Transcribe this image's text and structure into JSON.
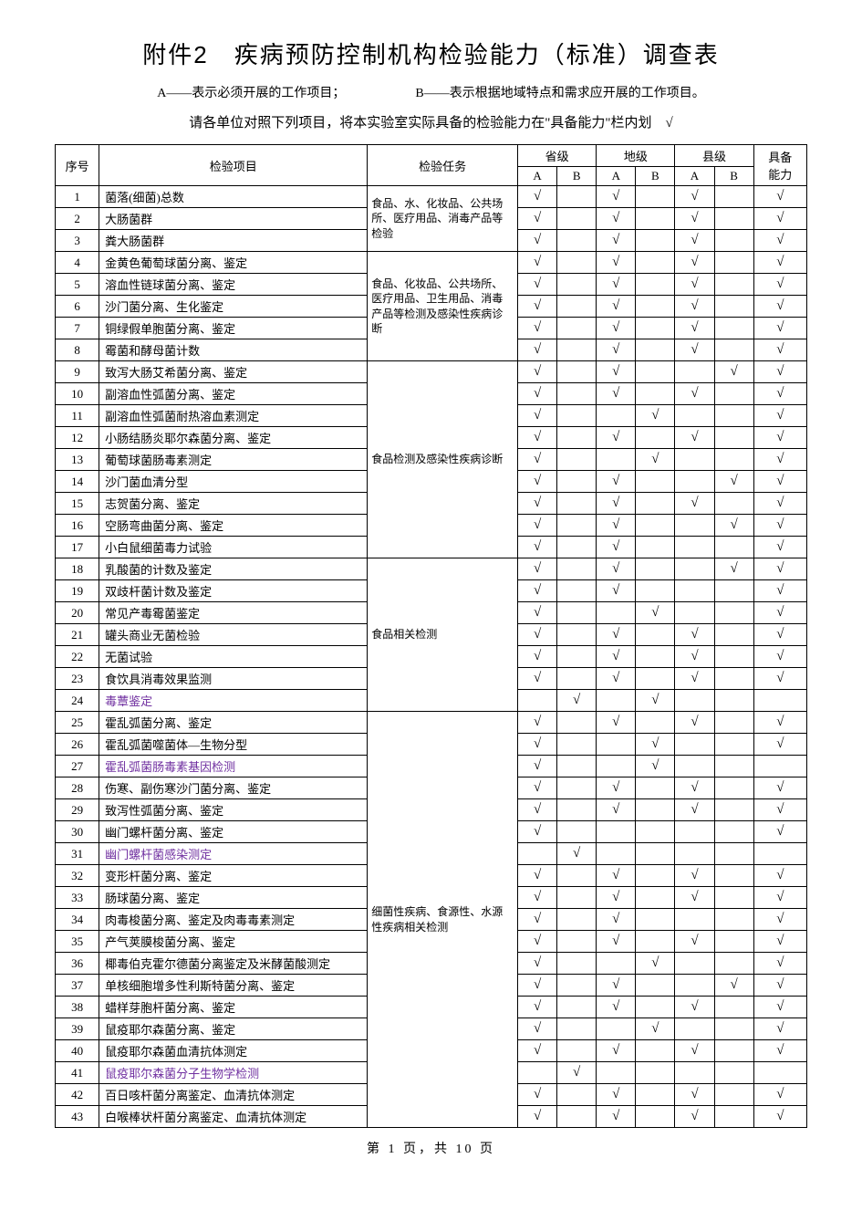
{
  "title": "附件2　疾病预防控制机构检验能力（标准）调查表",
  "legendA": "A——表示必须开展的工作项目；",
  "legendB": "B——表示根据地域特点和需求应开展的工作项目。",
  "instruction": "请各单位对照下列项目，将本实验室实际具备的检验能力在\"具备能力\"栏内划　√",
  "checkmark": "√",
  "headers": {
    "seq": "序号",
    "item": "检验项目",
    "task": "检验任务",
    "prov": "省级",
    "city": "地级",
    "county": "县级",
    "A": "A",
    "B": "B",
    "capability": "具备\n能力"
  },
  "taskGroups": [
    {
      "start": 1,
      "span": 3,
      "text": "食品、水、化妆品、公共场所、医疗用品、消毒产品等检验"
    },
    {
      "start": 4,
      "span": 5,
      "text": "食品、化妆品、公共场所、医疗用品、卫生用品、消毒产品等检测及感染性疾病诊断"
    },
    {
      "start": 9,
      "span": 9,
      "text": "食品检测及感染性疾病诊断"
    },
    {
      "start": 18,
      "span": 7,
      "text": "食品相关检测"
    },
    {
      "start": 25,
      "span": 19,
      "text": "细菌性疾病、食源性、水源性疾病相关检测"
    }
  ],
  "rows": [
    {
      "n": 1,
      "name": "菌落(细菌)总数",
      "pA": 1,
      "pB": 0,
      "cA": 1,
      "cB": 0,
      "xA": 1,
      "xB": 0,
      "cap": 1
    },
    {
      "n": 2,
      "name": "大肠菌群",
      "pA": 1,
      "pB": 0,
      "cA": 1,
      "cB": 0,
      "xA": 1,
      "xB": 0,
      "cap": 1
    },
    {
      "n": 3,
      "name": "粪大肠菌群",
      "pA": 1,
      "pB": 0,
      "cA": 1,
      "cB": 0,
      "xA": 1,
      "xB": 0,
      "cap": 1
    },
    {
      "n": 4,
      "name": "金黄色葡萄球菌分离、鉴定",
      "pA": 1,
      "pB": 0,
      "cA": 1,
      "cB": 0,
      "xA": 1,
      "xB": 0,
      "cap": 1
    },
    {
      "n": 5,
      "name": "溶血性链球菌分离、鉴定",
      "pA": 1,
      "pB": 0,
      "cA": 1,
      "cB": 0,
      "xA": 1,
      "xB": 0,
      "cap": 1
    },
    {
      "n": 6,
      "name": "沙门菌分离、生化鉴定",
      "pA": 1,
      "pB": 0,
      "cA": 1,
      "cB": 0,
      "xA": 1,
      "xB": 0,
      "cap": 1
    },
    {
      "n": 7,
      "name": "铜绿假单胞菌分离、鉴定",
      "pA": 1,
      "pB": 0,
      "cA": 1,
      "cB": 0,
      "xA": 1,
      "xB": 0,
      "cap": 1
    },
    {
      "n": 8,
      "name": "霉菌和酵母菌计数",
      "pA": 1,
      "pB": 0,
      "cA": 1,
      "cB": 0,
      "xA": 1,
      "xB": 0,
      "cap": 1
    },
    {
      "n": 9,
      "name": "致泻大肠艾希菌分离、鉴定",
      "pA": 1,
      "pB": 0,
      "cA": 1,
      "cB": 0,
      "xA": 0,
      "xB": 1,
      "cap": 1
    },
    {
      "n": 10,
      "name": "副溶血性弧菌分离、鉴定",
      "pA": 1,
      "pB": 0,
      "cA": 1,
      "cB": 0,
      "xA": 1,
      "xB": 0,
      "cap": 1
    },
    {
      "n": 11,
      "name": "副溶血性弧菌耐热溶血素测定",
      "pA": 1,
      "pB": 0,
      "cA": 0,
      "cB": 1,
      "xA": 0,
      "xB": 0,
      "cap": 1
    },
    {
      "n": 12,
      "name": "小肠结肠炎耶尔森菌分离、鉴定",
      "pA": 1,
      "pB": 0,
      "cA": 1,
      "cB": 0,
      "xA": 1,
      "xB": 0,
      "cap": 1
    },
    {
      "n": 13,
      "name": "葡萄球菌肠毒素测定",
      "pA": 1,
      "pB": 0,
      "cA": 0,
      "cB": 1,
      "xA": 0,
      "xB": 0,
      "cap": 1
    },
    {
      "n": 14,
      "name": "沙门菌血清分型",
      "pA": 1,
      "pB": 0,
      "cA": 1,
      "cB": 0,
      "xA": 0,
      "xB": 1,
      "cap": 1
    },
    {
      "n": 15,
      "name": "志贺菌分离、鉴定",
      "pA": 1,
      "pB": 0,
      "cA": 1,
      "cB": 0,
      "xA": 1,
      "xB": 0,
      "cap": 1
    },
    {
      "n": 16,
      "name": "空肠弯曲菌分离、鉴定",
      "pA": 1,
      "pB": 0,
      "cA": 1,
      "cB": 0,
      "xA": 0,
      "xB": 1,
      "cap": 1
    },
    {
      "n": 17,
      "name": "小白鼠细菌毒力试验",
      "pA": 1,
      "pB": 0,
      "cA": 1,
      "cB": 0,
      "xA": 0,
      "xB": 0,
      "cap": 1
    },
    {
      "n": 18,
      "name": "乳酸菌的计数及鉴定",
      "pA": 1,
      "pB": 0,
      "cA": 1,
      "cB": 0,
      "xA": 0,
      "xB": 1,
      "cap": 1
    },
    {
      "n": 19,
      "name": "双歧杆菌计数及鉴定",
      "pA": 1,
      "pB": 0,
      "cA": 1,
      "cB": 0,
      "xA": 0,
      "xB": 0,
      "cap": 1
    },
    {
      "n": 20,
      "name": "常见产毒霉菌鉴定",
      "pA": 1,
      "pB": 0,
      "cA": 0,
      "cB": 1,
      "xA": 0,
      "xB": 0,
      "cap": 1
    },
    {
      "n": 21,
      "name": "罐头商业无菌检验",
      "pA": 1,
      "pB": 0,
      "cA": 1,
      "cB": 0,
      "xA": 1,
      "xB": 0,
      "cap": 1
    },
    {
      "n": 22,
      "name": "无菌试验",
      "pA": 1,
      "pB": 0,
      "cA": 1,
      "cB": 0,
      "xA": 1,
      "xB": 0,
      "cap": 1
    },
    {
      "n": 23,
      "name": "食饮具消毒效果监测",
      "pA": 1,
      "pB": 0,
      "cA": 1,
      "cB": 0,
      "xA": 1,
      "xB": 0,
      "cap": 1
    },
    {
      "n": 24,
      "name": "毒蕈鉴定",
      "purple": true,
      "pA": 0,
      "pB": 1,
      "cA": 0,
      "cB": 1,
      "xA": 0,
      "xB": 0,
      "cap": 0
    },
    {
      "n": 25,
      "name": "霍乱弧菌分离、鉴定",
      "pA": 1,
      "pB": 0,
      "cA": 1,
      "cB": 0,
      "xA": 1,
      "xB": 0,
      "cap": 1
    },
    {
      "n": 26,
      "name": "霍乱弧菌噬菌体—生物分型",
      "pA": 1,
      "pB": 0,
      "cA": 0,
      "cB": 1,
      "xA": 0,
      "xB": 0,
      "cap": 1
    },
    {
      "n": 27,
      "name": "霍乱弧菌肠毒素基因检测",
      "purple": true,
      "pA": 1,
      "pB": 0,
      "cA": 0,
      "cB": 1,
      "xA": 0,
      "xB": 0,
      "cap": 0
    },
    {
      "n": 28,
      "name": "伤寒、副伤寒沙门菌分离、鉴定",
      "pA": 1,
      "pB": 0,
      "cA": 1,
      "cB": 0,
      "xA": 1,
      "xB": 0,
      "cap": 1
    },
    {
      "n": 29,
      "name": "致泻性弧菌分离、鉴定",
      "pA": 1,
      "pB": 0,
      "cA": 1,
      "cB": 0,
      "xA": 1,
      "xB": 0,
      "cap": 1
    },
    {
      "n": 30,
      "name": "幽门螺杆菌分离、鉴定",
      "pA": 1,
      "pB": 0,
      "cA": 0,
      "cB": 0,
      "xA": 0,
      "xB": 0,
      "cap": 1
    },
    {
      "n": 31,
      "name": "幽门螺杆菌感染测定",
      "purple": true,
      "pA": 0,
      "pB": 1,
      "cA": 0,
      "cB": 0,
      "xA": 0,
      "xB": 0,
      "cap": 0
    },
    {
      "n": 32,
      "name": "变形杆菌分离、鉴定",
      "pA": 1,
      "pB": 0,
      "cA": 1,
      "cB": 0,
      "xA": 1,
      "xB": 0,
      "cap": 1
    },
    {
      "n": 33,
      "name": "肠球菌分离、鉴定",
      "pA": 1,
      "pB": 0,
      "cA": 1,
      "cB": 0,
      "xA": 1,
      "xB": 0,
      "cap": 1
    },
    {
      "n": 34,
      "name": "肉毒梭菌分离、鉴定及肉毒毒素测定",
      "pA": 1,
      "pB": 0,
      "cA": 1,
      "cB": 0,
      "xA": 0,
      "xB": 0,
      "cap": 1
    },
    {
      "n": 35,
      "name": "产气荚膜梭菌分离、鉴定",
      "pA": 1,
      "pB": 0,
      "cA": 1,
      "cB": 0,
      "xA": 1,
      "xB": 0,
      "cap": 1
    },
    {
      "n": 36,
      "name": "椰毒伯克霍尔德菌分离鉴定及米酵菌酸测定",
      "pA": 1,
      "pB": 0,
      "cA": 0,
      "cB": 1,
      "xA": 0,
      "xB": 0,
      "cap": 1
    },
    {
      "n": 37,
      "name": "单核细胞增多性利斯特菌分离、鉴定",
      "pA": 1,
      "pB": 0,
      "cA": 1,
      "cB": 0,
      "xA": 0,
      "xB": 1,
      "cap": 1
    },
    {
      "n": 38,
      "name": "蜡样芽胞杆菌分离、鉴定",
      "pA": 1,
      "pB": 0,
      "cA": 1,
      "cB": 0,
      "xA": 1,
      "xB": 0,
      "cap": 1
    },
    {
      "n": 39,
      "name": "鼠疫耶尔森菌分离、鉴定",
      "pA": 1,
      "pB": 0,
      "cA": 0,
      "cB": 1,
      "xA": 0,
      "xB": 0,
      "cap": 1
    },
    {
      "n": 40,
      "name": "鼠疫耶尔森菌血清抗体测定",
      "pA": 1,
      "pB": 0,
      "cA": 1,
      "cB": 0,
      "xA": 1,
      "xB": 0,
      "cap": 1
    },
    {
      "n": 41,
      "name": "鼠疫耶尔森菌分子生物学检测",
      "purple": true,
      "pA": 0,
      "pB": 1,
      "cA": 0,
      "cB": 0,
      "xA": 0,
      "xB": 0,
      "cap": 0
    },
    {
      "n": 42,
      "name": "百日咳杆菌分离鉴定、血清抗体测定",
      "pA": 1,
      "pB": 0,
      "cA": 1,
      "cB": 0,
      "xA": 1,
      "xB": 0,
      "cap": 1
    },
    {
      "n": 43,
      "name": "白喉棒状杆菌分离鉴定、血清抗体测定",
      "pA": 1,
      "pB": 0,
      "cA": 1,
      "cB": 0,
      "xA": 1,
      "xB": 0,
      "cap": 1
    }
  ],
  "footer": "第 1 页，共 10 页"
}
